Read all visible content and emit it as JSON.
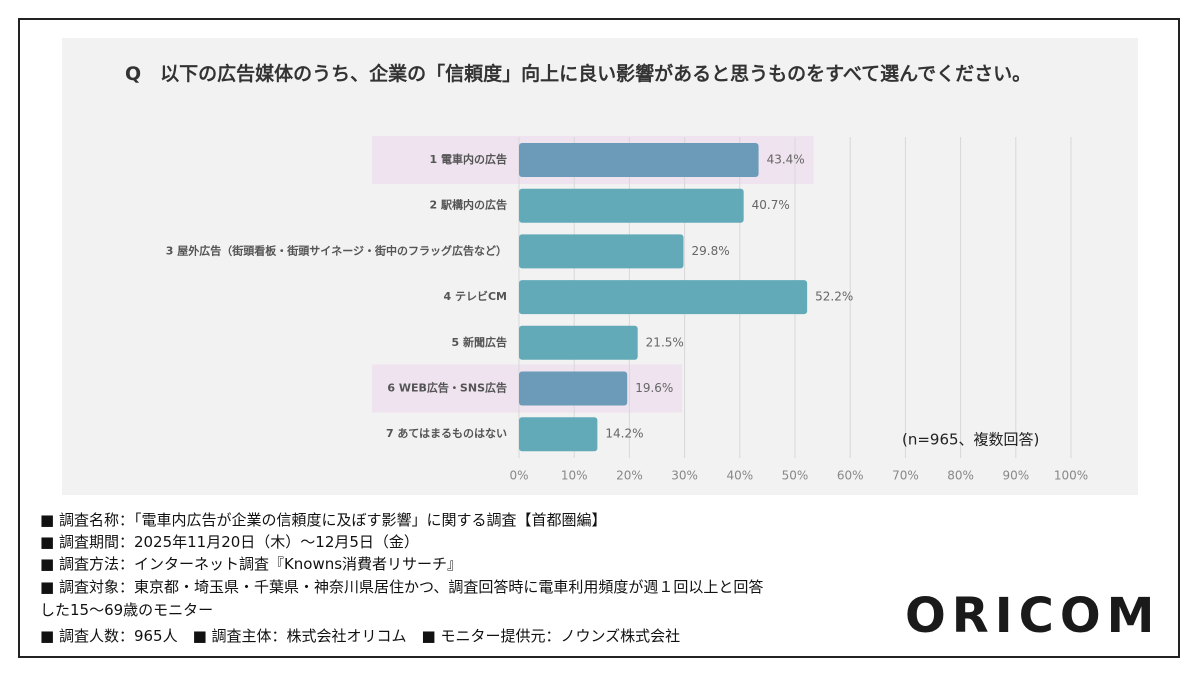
{
  "chart_data": {
    "type": "bar",
    "orientation": "horizontal",
    "title": "Q　以下の広告媒体のうち、企業の「信頼度」向上に良い影響があると思うものをすべて選んでください。",
    "categories": [
      "1 電車内の広告",
      "2 駅構内の広告",
      "3 屋外広告（街頭看板・街頭サイネージ・街中のフラッグ広告など）",
      "4 テレビCM",
      "5 新聞広告",
      "6 WEB広告・SNS広告",
      "7 あてはまるものはない"
    ],
    "values": [
      43.4,
      40.7,
      29.8,
      52.2,
      21.5,
      19.6,
      14.2
    ],
    "value_labels": [
      "43.4%",
      "40.7%",
      "29.8%",
      "52.2%",
      "21.5%",
      "19.6%",
      "14.2%"
    ],
    "color": "#62aab8",
    "highlight_color": "#6b9bb8",
    "highlight_background": "#eee3ee",
    "highlighted": [
      true,
      false,
      false,
      false,
      false,
      true,
      false
    ],
    "xlim": [
      0,
      100
    ],
    "xticks": [
      {
        "value": 0,
        "label": "0%"
      },
      {
        "value": 10,
        "label": "10%"
      },
      {
        "value": 20,
        "label": "20%"
      },
      {
        "value": 30,
        "label": "30%"
      },
      {
        "value": 40,
        "label": "40%"
      },
      {
        "value": 50,
        "label": "50%"
      },
      {
        "value": 60,
        "label": "60%"
      },
      {
        "value": 70,
        "label": "70%"
      },
      {
        "value": 80,
        "label": "80%"
      },
      {
        "value": 90,
        "label": "90%"
      },
      {
        "value": 100,
        "label": "100%"
      }
    ],
    "grid": true,
    "annotation": "(n=965、複数回答)"
  },
  "notes": [
    "■ 調査名称：「電車内広告が企業の信頼度に及ぼす影響」に関する調査【首都圏編】",
    "■ 調査期間：2025年11月20日（木）〜12月5日（金）",
    "■ 調査方法：インターネット調査『Knowns消費者リサーチ』",
    "■ 調査対象：東京都・埼玉県・千葉県・神奈川県居住かつ、調査回答時に電車利用頻度が週１回以上と回答",
    "した15〜69歳のモニター",
    "■ 調査人数：965人　■ 調査主体：株式会社オリコム　■ モニター提供元：ノウンズ株式会社"
  ],
  "logo": "ORICOM"
}
